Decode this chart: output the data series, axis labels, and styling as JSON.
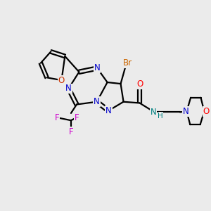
{
  "bg_color": "#ebebeb",
  "bond_color": "#000000",
  "bond_lw": 1.6,
  "atom_colors": {
    "N_ring": "#0000cc",
    "N_morph": "#0000cc",
    "O_furan": "#cc3300",
    "O_carbonyl": "#ff0000",
    "O_morph": "#ff0000",
    "Br": "#cc6600",
    "F": "#cc00cc",
    "N_amide": "#008080",
    "C": "#000000"
  },
  "figsize": [
    3.0,
    3.0
  ],
  "dpi": 100,
  "xlim": [
    0,
    10
  ],
  "ylim": [
    0,
    10
  ]
}
